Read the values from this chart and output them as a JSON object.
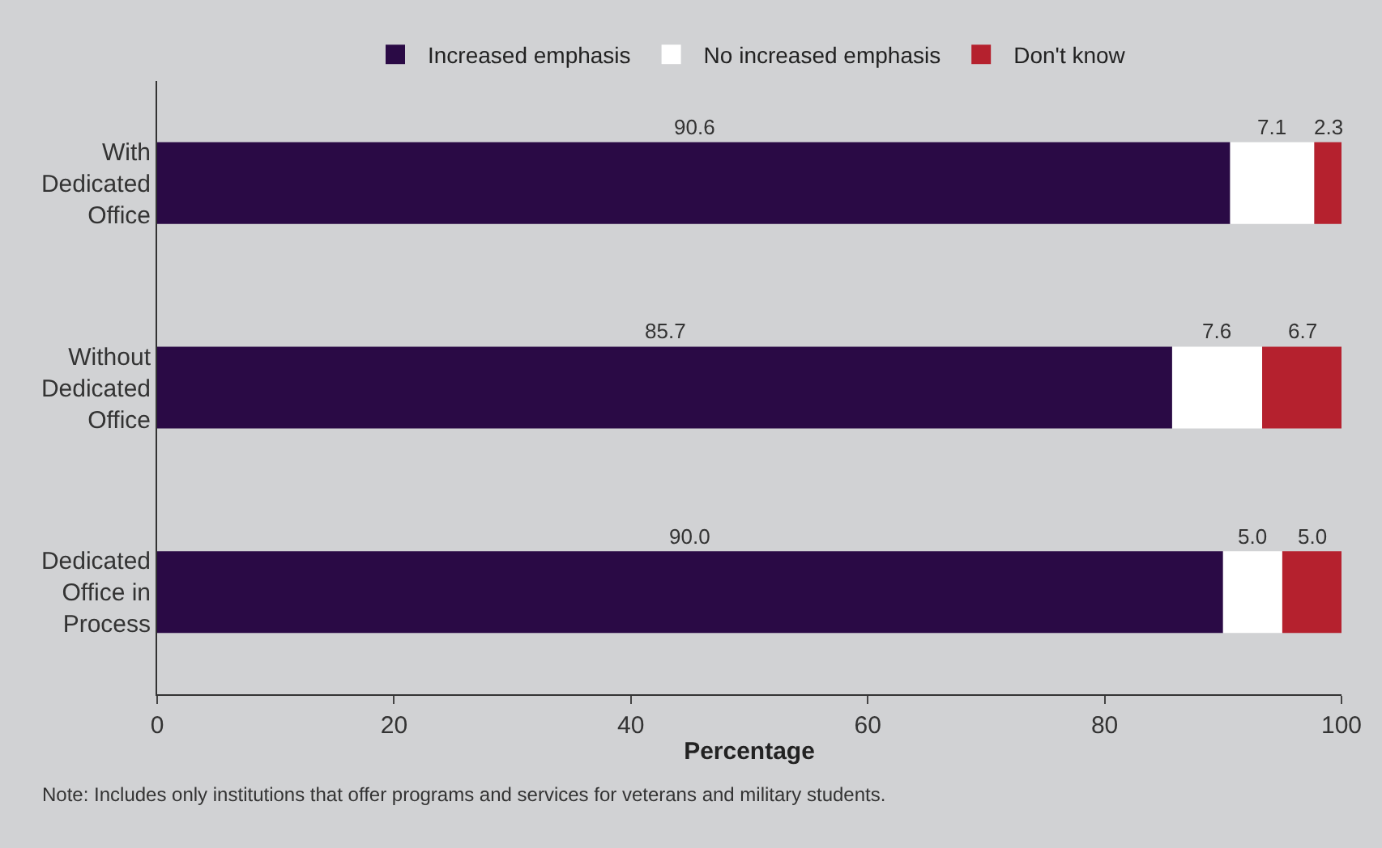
{
  "chart_data": {
    "type": "bar",
    "orientation": "horizontal",
    "stacked": true,
    "xlabel": "Percentage",
    "categories": [
      "With Dedicated Office",
      "Without Dedicated Office",
      "Dedicated Office in Process"
    ],
    "series": [
      {
        "name": "Increased emphasis",
        "color": "#2a0a45",
        "values": [
          90.6,
          85.7,
          90.0
        ],
        "value_labels": [
          "90.6",
          "85.7",
          "90.0"
        ]
      },
      {
        "name": "No increased emphasis",
        "color": "#ffffff",
        "values": [
          7.1,
          7.6,
          5.0
        ],
        "value_labels": [
          "7.1",
          "7.6",
          "5.0"
        ]
      },
      {
        "name": "Don't know",
        "color": "#b5212e",
        "values": [
          2.3,
          6.7,
          5.0
        ],
        "value_labels": [
          "2.3",
          "6.7",
          "5.0"
        ]
      }
    ],
    "xlim": [
      0,
      100
    ],
    "xticks": [
      0,
      20,
      40,
      60,
      80,
      100
    ],
    "grid": false,
    "legend": "top",
    "annotations": [
      "Note: Includes only institutions that offer programs and services for veterans and military students."
    ]
  }
}
